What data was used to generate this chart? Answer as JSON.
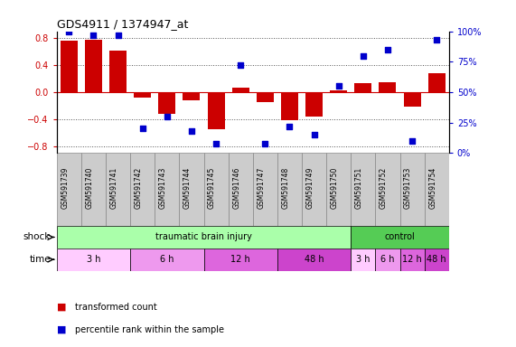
{
  "title": "GDS4911 / 1374947_at",
  "samples": [
    "GSM591739",
    "GSM591740",
    "GSM591741",
    "GSM591742",
    "GSM591743",
    "GSM591744",
    "GSM591745",
    "GSM591746",
    "GSM591747",
    "GSM591748",
    "GSM591749",
    "GSM591750",
    "GSM591751",
    "GSM591752",
    "GSM591753",
    "GSM591754"
  ],
  "bar_values": [
    0.76,
    0.77,
    0.62,
    -0.08,
    -0.32,
    -0.12,
    -0.55,
    0.07,
    -0.15,
    -0.42,
    -0.36,
    0.02,
    0.13,
    0.15,
    -0.22,
    0.28
  ],
  "dot_values": [
    100,
    97,
    97,
    20,
    30,
    18,
    8,
    72,
    8,
    22,
    15,
    55,
    80,
    85,
    10,
    93
  ],
  "ylim": [
    -0.9,
    0.9
  ],
  "y2lim": [
    0,
    100
  ],
  "yticks": [
    -0.8,
    -0.4,
    0.0,
    0.4,
    0.8
  ],
  "y2ticks": [
    0,
    25,
    50,
    75,
    100
  ],
  "y2ticklabels": [
    "0%",
    "25%",
    "50%",
    "75%",
    "100%"
  ],
  "bar_color": "#cc0000",
  "dot_color": "#0000cc",
  "hline_color": "#cc0000",
  "dotted_color": "#555555",
  "shock_row": [
    {
      "label": "traumatic brain injury",
      "start": 0,
      "end": 12,
      "color": "#aaffaa"
    },
    {
      "label": "control",
      "start": 12,
      "end": 16,
      "color": "#55cc55"
    }
  ],
  "time_row": [
    {
      "label": "3 h",
      "start": 0,
      "end": 3,
      "color": "#ffccff"
    },
    {
      "label": "6 h",
      "start": 3,
      "end": 6,
      "color": "#ee99ee"
    },
    {
      "label": "12 h",
      "start": 6,
      "end": 9,
      "color": "#dd66dd"
    },
    {
      "label": "48 h",
      "start": 9,
      "end": 12,
      "color": "#cc44cc"
    },
    {
      "label": "3 h",
      "start": 12,
      "end": 13,
      "color": "#ffccff"
    },
    {
      "label": "6 h",
      "start": 13,
      "end": 14,
      "color": "#ee99ee"
    },
    {
      "label": "12 h",
      "start": 14,
      "end": 15,
      "color": "#dd66dd"
    },
    {
      "label": "48 h",
      "start": 15,
      "end": 16,
      "color": "#cc44cc"
    }
  ],
  "legend_items": [
    {
      "label": "transformed count",
      "color": "#cc0000"
    },
    {
      "label": "percentile rank within the sample",
      "color": "#0000cc"
    }
  ],
  "shock_label": "shock",
  "time_label": "time",
  "bg_color": "#ffffff",
  "tick_label_color_left": "#cc0000",
  "tick_label_color_right": "#0000cc",
  "sample_box_color": "#cccccc",
  "sample_box_edge": "#888888"
}
